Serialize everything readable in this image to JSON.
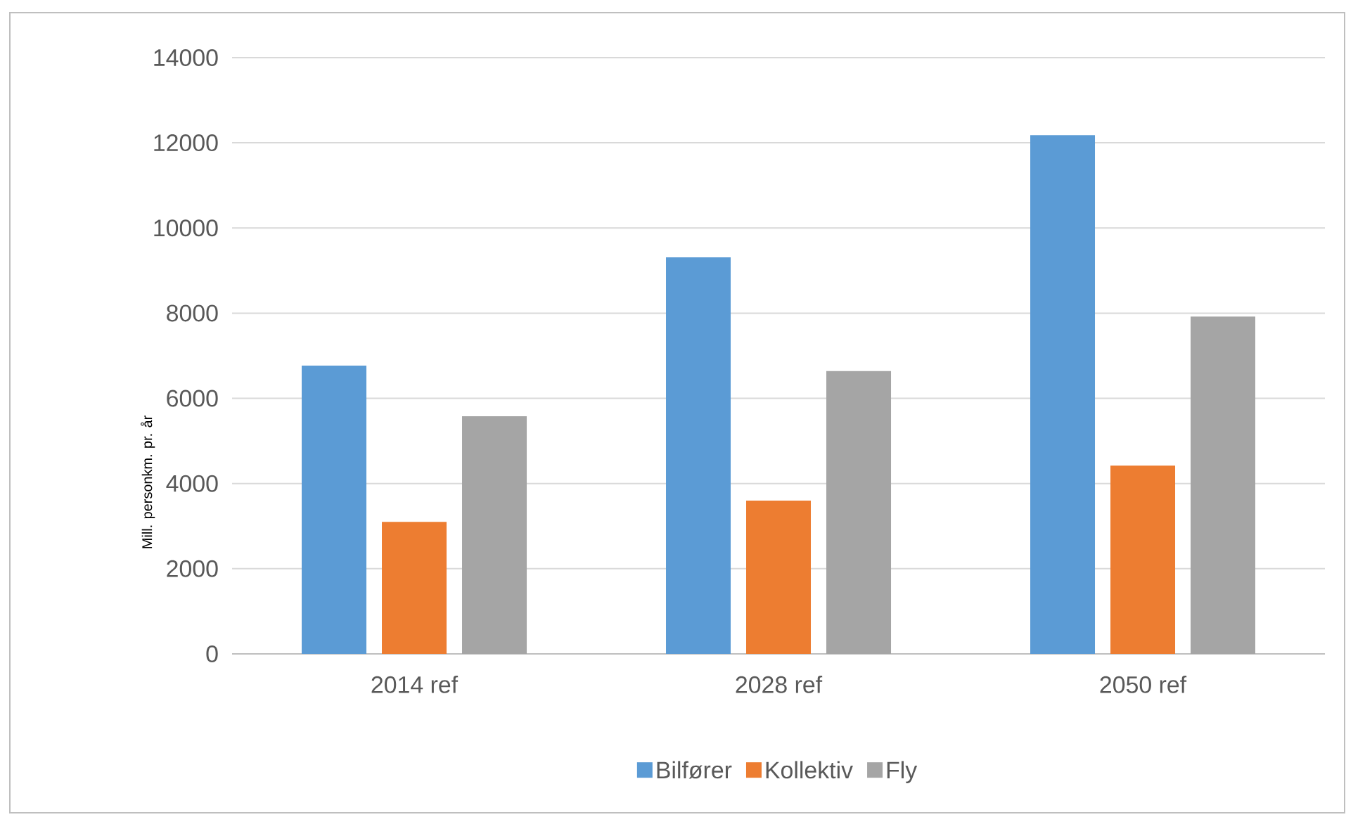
{
  "chart_data": {
    "type": "bar",
    "ylabel": "Mill. personkm. pr. år",
    "categories": [
      "2014 ref",
      "2028 ref",
      "2050 ref"
    ],
    "series": [
      {
        "name": "Bilfører",
        "color": "#5b9bd5",
        "values": [
          6770,
          9310,
          12180
        ]
      },
      {
        "name": "Kollektiv",
        "color": "#ed7d31",
        "values": [
          3100,
          3600,
          4420
        ]
      },
      {
        "name": "Fly",
        "color": "#a5a5a5",
        "values": [
          5580,
          6640,
          7920
        ]
      }
    ],
    "ylim": [
      0,
      14000
    ],
    "yticks": [
      0,
      2000,
      4000,
      6000,
      8000,
      10000,
      12000,
      14000
    ],
    "grid": "y",
    "legend": "bottom"
  }
}
